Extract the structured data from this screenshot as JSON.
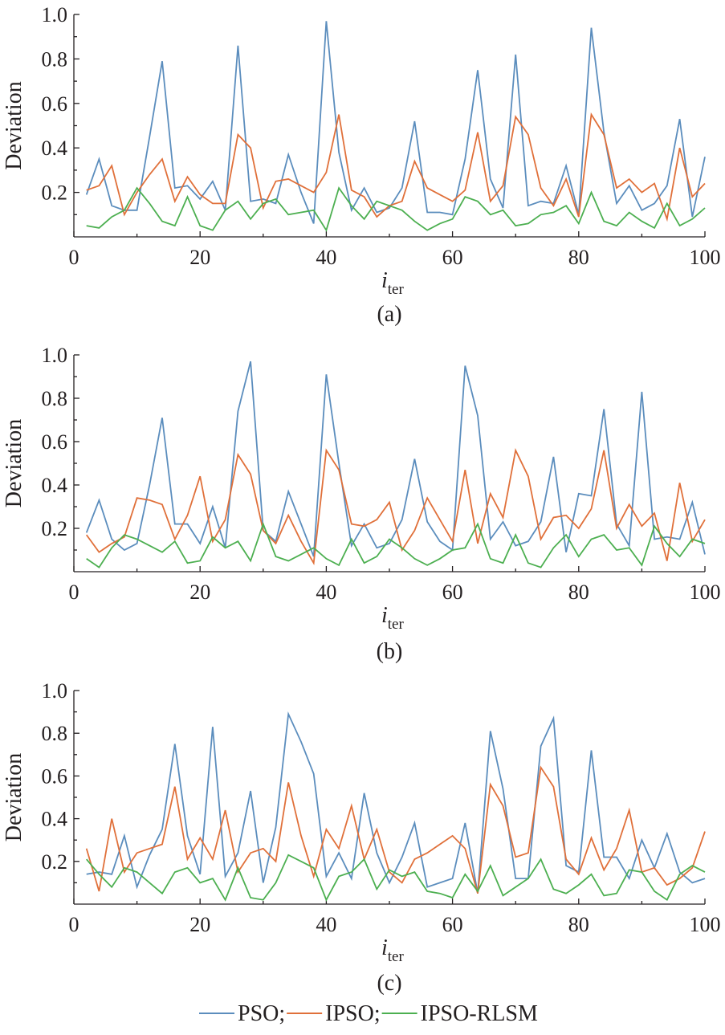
{
  "legend": [
    {
      "name": "PSO;",
      "color": "#5b8dbd"
    },
    {
      "name": "IPSO;",
      "color": "#e0703a"
    },
    {
      "name": "IPSO-RLSM",
      "color": "#4caf50"
    }
  ],
  "chart_data": [
    {
      "type": "line",
      "panel_label": "(a)",
      "xlabel_main": "i",
      "xlabel_sub": "ter",
      "ylabel": "Deviation",
      "xlim": [
        0,
        100
      ],
      "ylim": [
        0,
        1.0
      ],
      "xticks": [
        0,
        20,
        40,
        60,
        80,
        100
      ],
      "yticks": [
        0.2,
        0.4,
        0.6,
        0.8,
        1.0
      ],
      "x": [
        2,
        4,
        6,
        8,
        10,
        12,
        14,
        16,
        18,
        20,
        22,
        24,
        26,
        28,
        30,
        32,
        34,
        36,
        38,
        40,
        42,
        44,
        46,
        48,
        50,
        52,
        54,
        56,
        58,
        60,
        62,
        64,
        66,
        68,
        70,
        72,
        74,
        76,
        78,
        80,
        82,
        84,
        86,
        88,
        90,
        92,
        94,
        96,
        98,
        100
      ],
      "series": [
        {
          "name": "PSO",
          "color": "#5b8dbd",
          "values": [
            0.19,
            0.35,
            0.14,
            0.12,
            0.12,
            0.45,
            0.79,
            0.22,
            0.23,
            0.17,
            0.25,
            0.12,
            0.86,
            0.16,
            0.17,
            0.15,
            0.37,
            0.2,
            0.06,
            0.97,
            0.38,
            0.12,
            0.22,
            0.11,
            0.13,
            0.22,
            0.52,
            0.11,
            0.11,
            0.1,
            0.35,
            0.75,
            0.26,
            0.13,
            0.82,
            0.14,
            0.16,
            0.15,
            0.32,
            0.1,
            0.94,
            0.47,
            0.15,
            0.23,
            0.12,
            0.15,
            0.23,
            0.53,
            0.09,
            0.36
          ]
        },
        {
          "name": "IPSO",
          "color": "#e0703a",
          "values": [
            0.21,
            0.23,
            0.32,
            0.1,
            0.2,
            0.28,
            0.35,
            0.16,
            0.27,
            0.19,
            0.15,
            0.15,
            0.46,
            0.4,
            0.13,
            0.25,
            0.26,
            0.23,
            0.2,
            0.29,
            0.55,
            0.21,
            0.18,
            0.09,
            0.14,
            0.16,
            0.34,
            0.22,
            0.19,
            0.16,
            0.21,
            0.47,
            0.16,
            0.23,
            0.54,
            0.46,
            0.22,
            0.14,
            0.26,
            0.09,
            0.55,
            0.46,
            0.22,
            0.26,
            0.2,
            0.24,
            0.08,
            0.4,
            0.18,
            0.24
          ]
        },
        {
          "name": "IPSO-RLSM",
          "color": "#4caf50",
          "values": [
            0.05,
            0.04,
            0.09,
            0.12,
            0.22,
            0.15,
            0.07,
            0.05,
            0.18,
            0.05,
            0.03,
            0.12,
            0.16,
            0.08,
            0.15,
            0.17,
            0.1,
            0.11,
            0.12,
            0.03,
            0.22,
            0.14,
            0.08,
            0.16,
            0.14,
            0.12,
            0.07,
            0.03,
            0.06,
            0.08,
            0.18,
            0.16,
            0.1,
            0.12,
            0.05,
            0.06,
            0.1,
            0.11,
            0.14,
            0.06,
            0.2,
            0.07,
            0.05,
            0.11,
            0.07,
            0.04,
            0.15,
            0.05,
            0.08,
            0.13
          ]
        }
      ]
    },
    {
      "type": "line",
      "panel_label": "(b)",
      "xlabel_main": "i",
      "xlabel_sub": "ter",
      "ylabel": "Deviation",
      "xlim": [
        0,
        100
      ],
      "ylim": [
        0,
        1.0
      ],
      "xticks": [
        0,
        20,
        40,
        60,
        80,
        100
      ],
      "yticks": [
        0.2,
        0.4,
        0.6,
        0.8,
        1.0
      ],
      "x": [
        2,
        4,
        6,
        8,
        10,
        12,
        14,
        16,
        18,
        20,
        22,
        24,
        26,
        28,
        30,
        32,
        34,
        36,
        38,
        40,
        42,
        44,
        46,
        48,
        50,
        52,
        54,
        56,
        58,
        60,
        62,
        64,
        66,
        68,
        70,
        72,
        74,
        76,
        78,
        80,
        82,
        84,
        86,
        88,
        90,
        92,
        94,
        96,
        98,
        100
      ],
      "series": [
        {
          "name": "PSO",
          "color": "#5b8dbd",
          "values": [
            0.18,
            0.33,
            0.15,
            0.1,
            0.13,
            0.4,
            0.71,
            0.22,
            0.22,
            0.13,
            0.3,
            0.11,
            0.74,
            0.97,
            0.19,
            0.14,
            0.37,
            0.22,
            0.07,
            0.91,
            0.5,
            0.12,
            0.22,
            0.11,
            0.13,
            0.24,
            0.52,
            0.23,
            0.14,
            0.1,
            0.95,
            0.72,
            0.15,
            0.23,
            0.12,
            0.14,
            0.23,
            0.53,
            0.09,
            0.36,
            0.35,
            0.75,
            0.22,
            0.12,
            0.83,
            0.15,
            0.16,
            0.15,
            0.32,
            0.08
          ]
        },
        {
          "name": "IPSO",
          "color": "#e0703a",
          "values": [
            0.17,
            0.09,
            0.13,
            0.16,
            0.34,
            0.33,
            0.31,
            0.15,
            0.26,
            0.44,
            0.14,
            0.24,
            0.54,
            0.45,
            0.19,
            0.13,
            0.26,
            0.14,
            0.04,
            0.56,
            0.47,
            0.22,
            0.21,
            0.24,
            0.32,
            0.1,
            0.19,
            0.34,
            0.24,
            0.14,
            0.47,
            0.13,
            0.36,
            0.25,
            0.56,
            0.44,
            0.15,
            0.25,
            0.26,
            0.2,
            0.29,
            0.56,
            0.2,
            0.31,
            0.21,
            0.27,
            0.05,
            0.41,
            0.14,
            0.24
          ]
        },
        {
          "name": "IPSO-RLSM",
          "color": "#4caf50",
          "values": [
            0.06,
            0.02,
            0.11,
            0.17,
            0.15,
            0.12,
            0.09,
            0.14,
            0.04,
            0.05,
            0.16,
            0.11,
            0.14,
            0.05,
            0.22,
            0.07,
            0.05,
            0.08,
            0.11,
            0.06,
            0.03,
            0.15,
            0.04,
            0.07,
            0.15,
            0.11,
            0.06,
            0.03,
            0.06,
            0.1,
            0.11,
            0.22,
            0.06,
            0.04,
            0.17,
            0.04,
            0.02,
            0.11,
            0.17,
            0.07,
            0.15,
            0.17,
            0.1,
            0.11,
            0.03,
            0.21,
            0.13,
            0.07,
            0.15,
            0.13
          ]
        }
      ]
    },
    {
      "type": "line",
      "panel_label": "(c)",
      "xlabel_main": "i",
      "xlabel_sub": "ter",
      "ylabel": "Deviation",
      "xlim": [
        0,
        100
      ],
      "ylim": [
        0,
        1.0
      ],
      "xticks": [
        0,
        20,
        40,
        60,
        80,
        100
      ],
      "yticks": [
        0.2,
        0.4,
        0.6,
        0.8,
        1.0
      ],
      "x": [
        2,
        4,
        6,
        8,
        10,
        12,
        14,
        16,
        18,
        20,
        22,
        24,
        26,
        28,
        30,
        32,
        34,
        36,
        38,
        40,
        42,
        44,
        46,
        48,
        50,
        52,
        54,
        56,
        58,
        60,
        62,
        64,
        66,
        68,
        70,
        72,
        74,
        76,
        78,
        80,
        82,
        84,
        86,
        88,
        90,
        92,
        94,
        96,
        98,
        100
      ],
      "series": [
        {
          "name": "PSO",
          "color": "#5b8dbd",
          "values": [
            0.14,
            0.15,
            0.14,
            0.32,
            0.08,
            0.23,
            0.35,
            0.75,
            0.32,
            0.14,
            0.83,
            0.13,
            0.24,
            0.53,
            0.1,
            0.36,
            0.89,
            0.76,
            0.61,
            0.13,
            0.24,
            0.12,
            0.52,
            0.24,
            0.1,
            0.22,
            0.38,
            0.08,
            0.1,
            0.12,
            0.38,
            0.05,
            0.81,
            0.54,
            0.12,
            0.12,
            0.74,
            0.87,
            0.18,
            0.15,
            0.72,
            0.22,
            0.22,
            0.12,
            0.3,
            0.17,
            0.33,
            0.15,
            0.1,
            0.12
          ]
        },
        {
          "name": "IPSO",
          "color": "#e0703a",
          "values": [
            0.26,
            0.06,
            0.4,
            0.15,
            0.24,
            0.26,
            0.28,
            0.55,
            0.21,
            0.31,
            0.21,
            0.44,
            0.15,
            0.24,
            0.26,
            0.2,
            0.57,
            0.32,
            0.13,
            0.35,
            0.26,
            0.46,
            0.21,
            0.35,
            0.15,
            0.1,
            0.21,
            0.24,
            0.28,
            0.32,
            0.26,
            0.05,
            0.56,
            0.46,
            0.22,
            0.24,
            0.64,
            0.55,
            0.21,
            0.14,
            0.31,
            0.16,
            0.26,
            0.44,
            0.15,
            0.17,
            0.09,
            0.12,
            0.17,
            0.34
          ]
        },
        {
          "name": "IPSO-RLSM",
          "color": "#4caf50",
          "values": [
            0.21,
            0.14,
            0.08,
            0.17,
            0.15,
            0.1,
            0.05,
            0.15,
            0.17,
            0.1,
            0.12,
            0.02,
            0.17,
            0.03,
            0.02,
            0.1,
            0.23,
            0.2,
            0.17,
            0.02,
            0.13,
            0.15,
            0.21,
            0.07,
            0.16,
            0.13,
            0.15,
            0.06,
            0.05,
            0.03,
            0.14,
            0.06,
            0.18,
            0.04,
            0.08,
            0.12,
            0.21,
            0.07,
            0.05,
            0.09,
            0.14,
            0.04,
            0.05,
            0.16,
            0.15,
            0.06,
            0.02,
            0.14,
            0.18,
            0.15
          ]
        }
      ]
    }
  ]
}
